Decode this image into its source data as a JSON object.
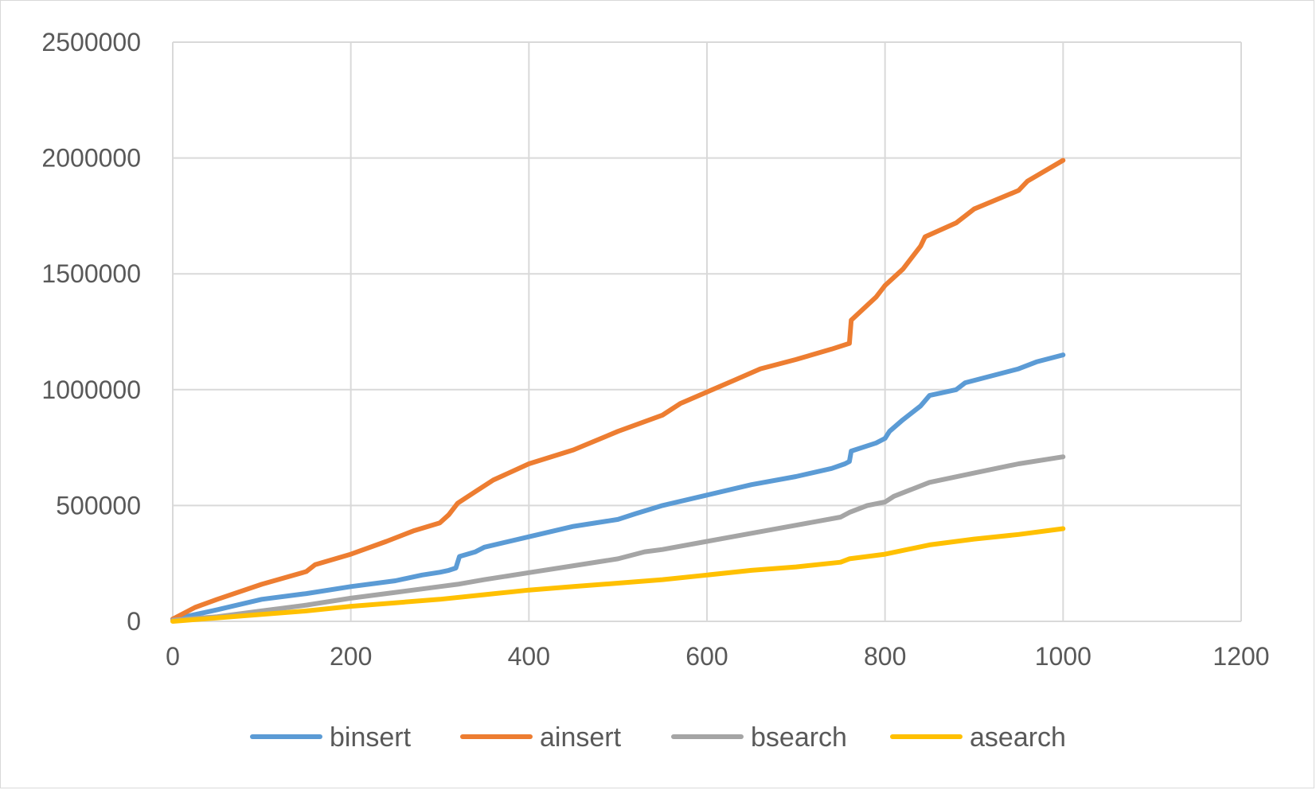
{
  "chart_data": {
    "type": "line",
    "title": "",
    "xlabel": "",
    "ylabel": "",
    "xlim": [
      0,
      1200
    ],
    "ylim": [
      0,
      2500000
    ],
    "x_ticks": [
      0,
      200,
      400,
      600,
      800,
      1000,
      1200
    ],
    "y_ticks": [
      0,
      500000,
      1000000,
      1500000,
      2000000,
      2500000
    ],
    "x_tick_labels": [
      "0",
      "200",
      "400",
      "600",
      "800",
      "1000",
      "1200"
    ],
    "y_tick_labels": [
      "0",
      "500000",
      "1000000",
      "1500000",
      "2000000",
      "2500000"
    ],
    "grid": true,
    "legend_position": "bottom",
    "series": [
      {
        "name": "binsert",
        "color": "#5b9bd5",
        "points": [
          [
            0,
            10000
          ],
          [
            20,
            25000
          ],
          [
            50,
            50000
          ],
          [
            100,
            95000
          ],
          [
            150,
            120000
          ],
          [
            200,
            150000
          ],
          [
            250,
            175000
          ],
          [
            280,
            200000
          ],
          [
            300,
            212000
          ],
          [
            310,
            220000
          ],
          [
            318,
            230000
          ],
          [
            322,
            280000
          ],
          [
            340,
            300000
          ],
          [
            350,
            320000
          ],
          [
            400,
            365000
          ],
          [
            450,
            410000
          ],
          [
            500,
            440000
          ],
          [
            520,
            465000
          ],
          [
            550,
            500000
          ],
          [
            600,
            545000
          ],
          [
            650,
            590000
          ],
          [
            700,
            625000
          ],
          [
            740,
            660000
          ],
          [
            755,
            680000
          ],
          [
            760,
            690000
          ],
          [
            762,
            735000
          ],
          [
            790,
            770000
          ],
          [
            800,
            790000
          ],
          [
            805,
            820000
          ],
          [
            820,
            870000
          ],
          [
            840,
            930000
          ],
          [
            850,
            975000
          ],
          [
            880,
            1000000
          ],
          [
            890,
            1030000
          ],
          [
            950,
            1090000
          ],
          [
            970,
            1120000
          ],
          [
            1000,
            1150000
          ]
        ]
      },
      {
        "name": "ainsert",
        "color": "#ed7d31",
        "points": [
          [
            0,
            10000
          ],
          [
            25,
            60000
          ],
          [
            50,
            95000
          ],
          [
            100,
            160000
          ],
          [
            150,
            215000
          ],
          [
            160,
            245000
          ],
          [
            200,
            290000
          ],
          [
            240,
            345000
          ],
          [
            270,
            390000
          ],
          [
            300,
            425000
          ],
          [
            310,
            460000
          ],
          [
            320,
            510000
          ],
          [
            340,
            560000
          ],
          [
            360,
            610000
          ],
          [
            400,
            680000
          ],
          [
            450,
            740000
          ],
          [
            500,
            820000
          ],
          [
            550,
            890000
          ],
          [
            570,
            940000
          ],
          [
            600,
            990000
          ],
          [
            630,
            1040000
          ],
          [
            660,
            1090000
          ],
          [
            700,
            1130000
          ],
          [
            740,
            1175000
          ],
          [
            760,
            1200000
          ],
          [
            762,
            1300000
          ],
          [
            790,
            1400000
          ],
          [
            800,
            1450000
          ],
          [
            820,
            1520000
          ],
          [
            840,
            1620000
          ],
          [
            845,
            1660000
          ],
          [
            880,
            1720000
          ],
          [
            900,
            1780000
          ],
          [
            950,
            1860000
          ],
          [
            960,
            1900000
          ],
          [
            1000,
            1990000
          ]
        ]
      },
      {
        "name": "bsearch",
        "color": "#a5a5a5",
        "points": [
          [
            0,
            5000
          ],
          [
            50,
            20000
          ],
          [
            100,
            45000
          ],
          [
            150,
            70000
          ],
          [
            200,
            100000
          ],
          [
            250,
            125000
          ],
          [
            300,
            150000
          ],
          [
            320,
            160000
          ],
          [
            350,
            180000
          ],
          [
            400,
            210000
          ],
          [
            450,
            240000
          ],
          [
            500,
            270000
          ],
          [
            530,
            300000
          ],
          [
            550,
            310000
          ],
          [
            600,
            345000
          ],
          [
            650,
            380000
          ],
          [
            700,
            415000
          ],
          [
            750,
            450000
          ],
          [
            760,
            470000
          ],
          [
            780,
            500000
          ],
          [
            800,
            515000
          ],
          [
            810,
            540000
          ],
          [
            850,
            600000
          ],
          [
            900,
            640000
          ],
          [
            950,
            680000
          ],
          [
            1000,
            710000
          ]
        ]
      },
      {
        "name": "asearch",
        "color": "#ffc000",
        "points": [
          [
            0,
            0
          ],
          [
            50,
            15000
          ],
          [
            100,
            30000
          ],
          [
            150,
            45000
          ],
          [
            200,
            65000
          ],
          [
            250,
            80000
          ],
          [
            300,
            95000
          ],
          [
            350,
            115000
          ],
          [
            400,
            135000
          ],
          [
            450,
            150000
          ],
          [
            500,
            165000
          ],
          [
            550,
            180000
          ],
          [
            600,
            200000
          ],
          [
            650,
            220000
          ],
          [
            700,
            235000
          ],
          [
            750,
            255000
          ],
          [
            760,
            270000
          ],
          [
            800,
            290000
          ],
          [
            850,
            330000
          ],
          [
            900,
            355000
          ],
          [
            950,
            375000
          ],
          [
            1000,
            400000
          ]
        ]
      }
    ]
  }
}
